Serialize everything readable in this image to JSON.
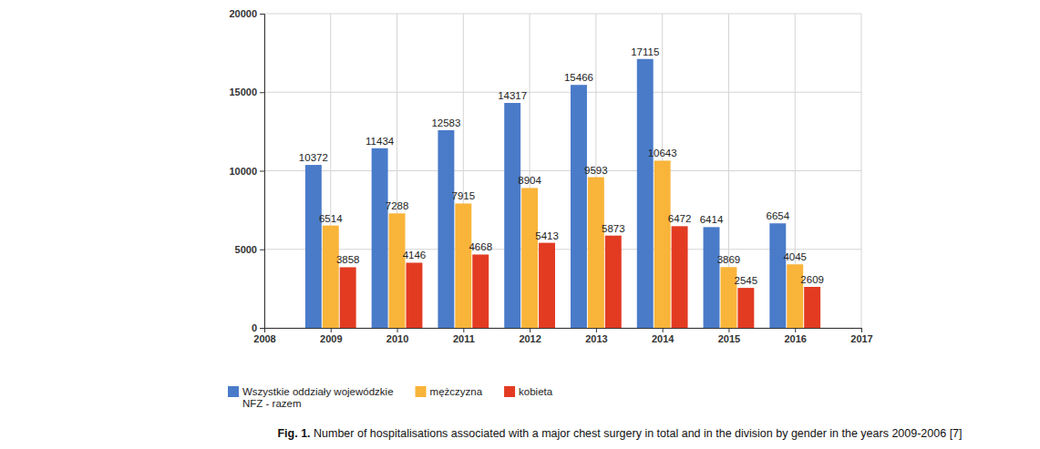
{
  "chart_data": {
    "type": "bar",
    "title": "Fig. 1. Number of hospitalisations associated with a major chest surgery in total and in the division by gender in the years 2009-2006 [7]",
    "x": [
      2009,
      2010,
      2011,
      2012,
      2013,
      2014,
      2015,
      2016
    ],
    "series": [
      {
        "name": "Wszystkie oddziały wojewódzkie NFZ - razem",
        "color": "#4a7bc9",
        "values": [
          10372,
          11434,
          12583,
          14317,
          15466,
          17115,
          6414,
          6654
        ]
      },
      {
        "name": "mężczyzna",
        "color": "#f9b43a",
        "values": [
          6514,
          7288,
          7915,
          8904,
          9593,
          10643,
          3869,
          4045
        ]
      },
      {
        "name": "kobieta",
        "color": "#e23b22",
        "values": [
          3858,
          4146,
          4668,
          5413,
          5873,
          6472,
          2545,
          2609
        ]
      }
    ],
    "xlim": [
      2008,
      2017
    ],
    "xticks": [
      2008,
      2009,
      2010,
      2011,
      2012,
      2013,
      2014,
      2015,
      2016,
      2017
    ],
    "ylim": [
      0,
      20000
    ],
    "yticks": [
      0,
      5000,
      10000,
      15000,
      20000
    ],
    "grid": true,
    "data_labels": true,
    "legend": "bottom left"
  }
}
